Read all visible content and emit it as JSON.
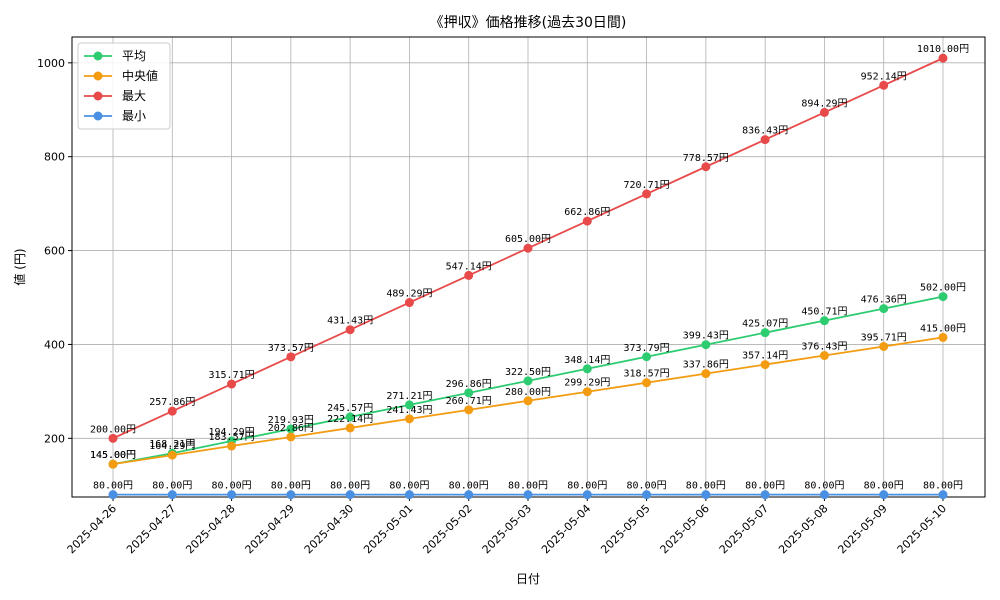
{
  "chart_data": {
    "type": "line",
    "title": "《押収》価格推移(過去30日間)",
    "xlabel": "日付",
    "ylabel": "値 (円)",
    "ylim": [
      75,
      1055
    ],
    "yticks": [
      200,
      400,
      600,
      800,
      1000
    ],
    "grid": true,
    "legend_position": "top-left",
    "categories": [
      "2025-04-26",
      "2025-04-27",
      "2025-04-28",
      "2025-04-29",
      "2025-04-30",
      "2025-05-01",
      "2025-05-02",
      "2025-05-03",
      "2025-05-04",
      "2025-05-05",
      "2025-05-06",
      "2025-05-07",
      "2025-05-08",
      "2025-05-09",
      "2025-05-10"
    ],
    "series": [
      {
        "name": "平均",
        "color": "#2ecc71",
        "values": [
          145.0,
          168.21,
          194.29,
          219.93,
          245.57,
          271.21,
          296.86,
          322.5,
          348.14,
          373.79,
          399.43,
          425.07,
          450.71,
          476.36,
          502.0
        ],
        "labels": [
          "145.00円",
          "168.21円",
          "194.29円",
          "219.93円",
          "245.57円",
          "271.21円",
          "296.86円",
          "322.50円",
          "348.14円",
          "373.79円",
          "399.43円",
          "425.07円",
          "450.71円",
          "476.36円",
          "502.00円"
        ]
      },
      {
        "name": "中央値",
        "color": "#f39c12",
        "values": [
          145.0,
          164.29,
          183.57,
          202.86,
          222.14,
          241.43,
          260.71,
          280.0,
          299.29,
          318.57,
          337.86,
          357.14,
          376.43,
          395.71,
          415.0
        ],
        "labels": [
          "145.00円",
          "164.29円",
          "183.57円",
          "202.86円",
          "222.14円",
          "241.43円",
          "260.71円",
          "280.00円",
          "299.29円",
          "318.57円",
          "337.86円",
          "357.14円",
          "376.43円",
          "395.71円",
          "415.00円"
        ]
      },
      {
        "name": "最大",
        "color": "#e84a4a",
        "values": [
          200.0,
          257.86,
          315.71,
          373.57,
          431.43,
          489.29,
          547.14,
          605.0,
          662.86,
          720.71,
          778.57,
          836.43,
          894.29,
          952.14,
          1010.0
        ],
        "labels": [
          "200.00円",
          "257.86円",
          "315.71円",
          "373.57円",
          "431.43円",
          "489.29円",
          "547.14円",
          "605.00円",
          "662.86円",
          "720.71円",
          "778.57円",
          "836.43円",
          "894.29円",
          "952.14円",
          "1010.00円"
        ]
      },
      {
        "name": "最小",
        "color": "#4a90e2",
        "values": [
          80,
          80,
          80,
          80,
          80,
          80,
          80,
          80,
          80,
          80,
          80,
          80,
          80,
          80,
          80
        ],
        "labels": [
          "80.00円",
          "80.00円",
          "80.00円",
          "80.00円",
          "80.00円",
          "80.00円",
          "80.00円",
          "80.00円",
          "80.00円",
          "80.00円",
          "80.00円",
          "80.00円",
          "80.00円",
          "80.00円",
          "80.00円"
        ]
      }
    ]
  }
}
